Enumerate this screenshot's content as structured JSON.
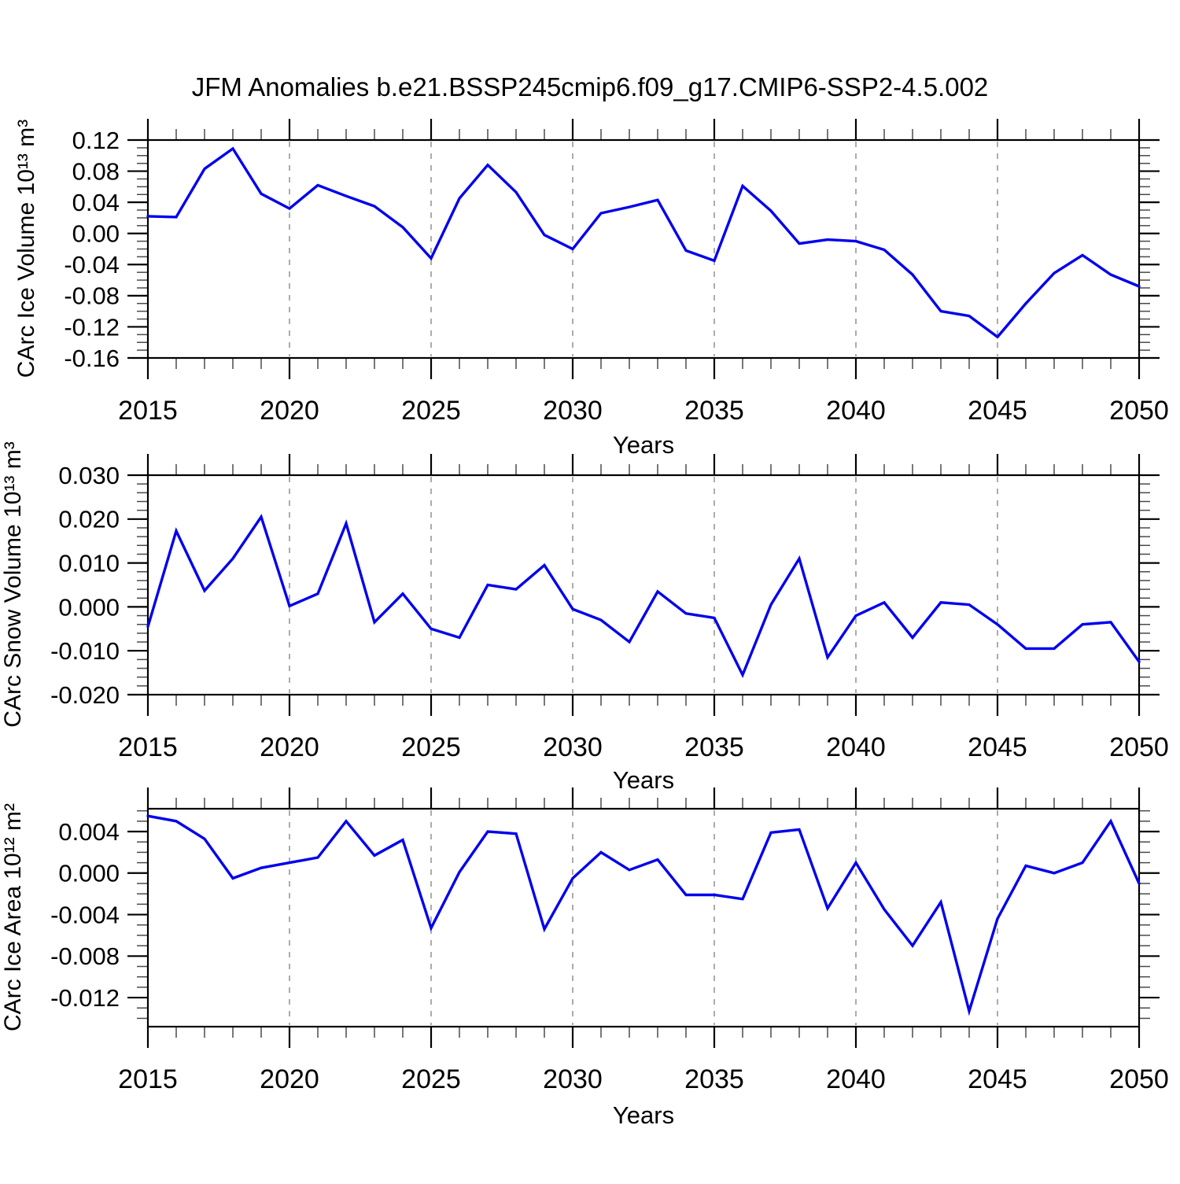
{
  "title": "JFM Anomalies b.e21.BSSP245cmip6.f09_g17.CMIP6-SSP2-4.5.002",
  "colors": {
    "line": "#0000ee",
    "grid": "#888888",
    "axis": "#000000",
    "minor_tick": "#4a4a4a",
    "background": "#ffffff"
  },
  "x_axis": {
    "label": "Years",
    "xlim": [
      2015,
      2050
    ],
    "ticks_major": [
      2015,
      2020,
      2025,
      2030,
      2035,
      2040,
      2045,
      2050
    ],
    "minor_step": 1,
    "grid_years": [
      2020,
      2025,
      2030,
      2035,
      2040,
      2045
    ]
  },
  "chart_data": [
    {
      "type": "line",
      "ylabel": "CArc Ice Volume 10¹³ m³",
      "xlabel": "Years",
      "ylim": [
        -0.16,
        0.12
      ],
      "yticks_major": [
        0.12,
        0.08,
        0.04,
        0.0,
        -0.04,
        -0.08,
        -0.12,
        -0.16
      ],
      "ytick_decimals": 2,
      "yminor_step": 0.01,
      "x": [
        2015,
        2016,
        2017,
        2018,
        2019,
        2020,
        2021,
        2022,
        2023,
        2024,
        2025,
        2026,
        2027,
        2028,
        2029,
        2030,
        2031,
        2032,
        2033,
        2034,
        2035,
        2036,
        2037,
        2038,
        2039,
        2040,
        2041,
        2042,
        2043,
        2044,
        2045,
        2046,
        2047,
        2048,
        2049,
        2050
      ],
      "values": [
        0.022,
        0.021,
        0.083,
        0.109,
        0.051,
        0.032,
        0.062,
        0.048,
        0.035,
        0.008,
        -0.032,
        0.045,
        0.088,
        0.053,
        -0.002,
        -0.02,
        0.026,
        0.034,
        0.043,
        -0.022,
        -0.035,
        0.061,
        0.029,
        -0.013,
        -0.008,
        -0.01,
        -0.021,
        -0.053,
        -0.1,
        -0.106,
        -0.133,
        -0.09,
        -0.051,
        -0.028,
        -0.053,
        -0.068
      ]
    },
    {
      "type": "line",
      "ylabel": "CArc Snow Volume 10¹³ m³",
      "xlabel": "Years",
      "ylim": [
        -0.02,
        0.03
      ],
      "yticks_major": [
        0.03,
        0.02,
        0.01,
        0.0,
        -0.01,
        -0.02
      ],
      "ytick_decimals": 3,
      "yminor_step": 0.002,
      "x": [
        2015,
        2016,
        2017,
        2018,
        2019,
        2020,
        2021,
        2022,
        2023,
        2024,
        2025,
        2026,
        2027,
        2028,
        2029,
        2030,
        2031,
        2032,
        2033,
        2034,
        2035,
        2036,
        2037,
        2038,
        2039,
        2040,
        2041,
        2042,
        2043,
        2044,
        2045,
        2046,
        2047,
        2048,
        2049,
        2050
      ],
      "values": [
        -0.0045,
        0.0173,
        0.0037,
        0.011,
        0.0205,
        0.0002,
        0.003,
        0.019,
        -0.0035,
        0.003,
        -0.005,
        -0.007,
        0.005,
        0.004,
        0.0095,
        -0.0005,
        -0.003,
        -0.008,
        0.0035,
        -0.0015,
        -0.0025,
        -0.0155,
        0.0005,
        0.011,
        -0.0115,
        -0.002,
        0.001,
        -0.007,
        0.001,
        0.0005,
        -0.004,
        -0.0095,
        -0.0095,
        -0.004,
        -0.0035,
        -0.0125
      ]
    },
    {
      "type": "line",
      "ylabel": "CArc Ice Area 10¹² m²",
      "xlabel": "Years",
      "ylim": [
        -0.0148,
        0.0062
      ],
      "yticks_major": [
        0.004,
        0.0,
        -0.004,
        -0.008,
        -0.012
      ],
      "ytick_decimals": 3,
      "yminor_step": 0.001,
      "x": [
        2015,
        2016,
        2017,
        2018,
        2019,
        2020,
        2021,
        2022,
        2023,
        2024,
        2025,
        2026,
        2027,
        2028,
        2029,
        2030,
        2031,
        2032,
        2033,
        2034,
        2035,
        2036,
        2037,
        2038,
        2039,
        2040,
        2041,
        2042,
        2043,
        2044,
        2045,
        2046,
        2047,
        2048,
        2049,
        2050
      ],
      "values": [
        0.0055,
        0.005,
        0.0033,
        -0.0005,
        0.0005,
        0.001,
        0.0015,
        0.005,
        0.0017,
        0.0032,
        -0.0053,
        0.0001,
        0.004,
        0.0038,
        -0.0054,
        -0.0005,
        0.002,
        0.0003,
        0.0013,
        -0.0021,
        -0.0021,
        -0.0025,
        0.0039,
        0.0042,
        -0.0034,
        0.001,
        -0.0035,
        -0.007,
        -0.0028,
        -0.0133,
        -0.0044,
        0.0007,
        0.0,
        0.001,
        0.005,
        -0.001
      ]
    }
  ]
}
